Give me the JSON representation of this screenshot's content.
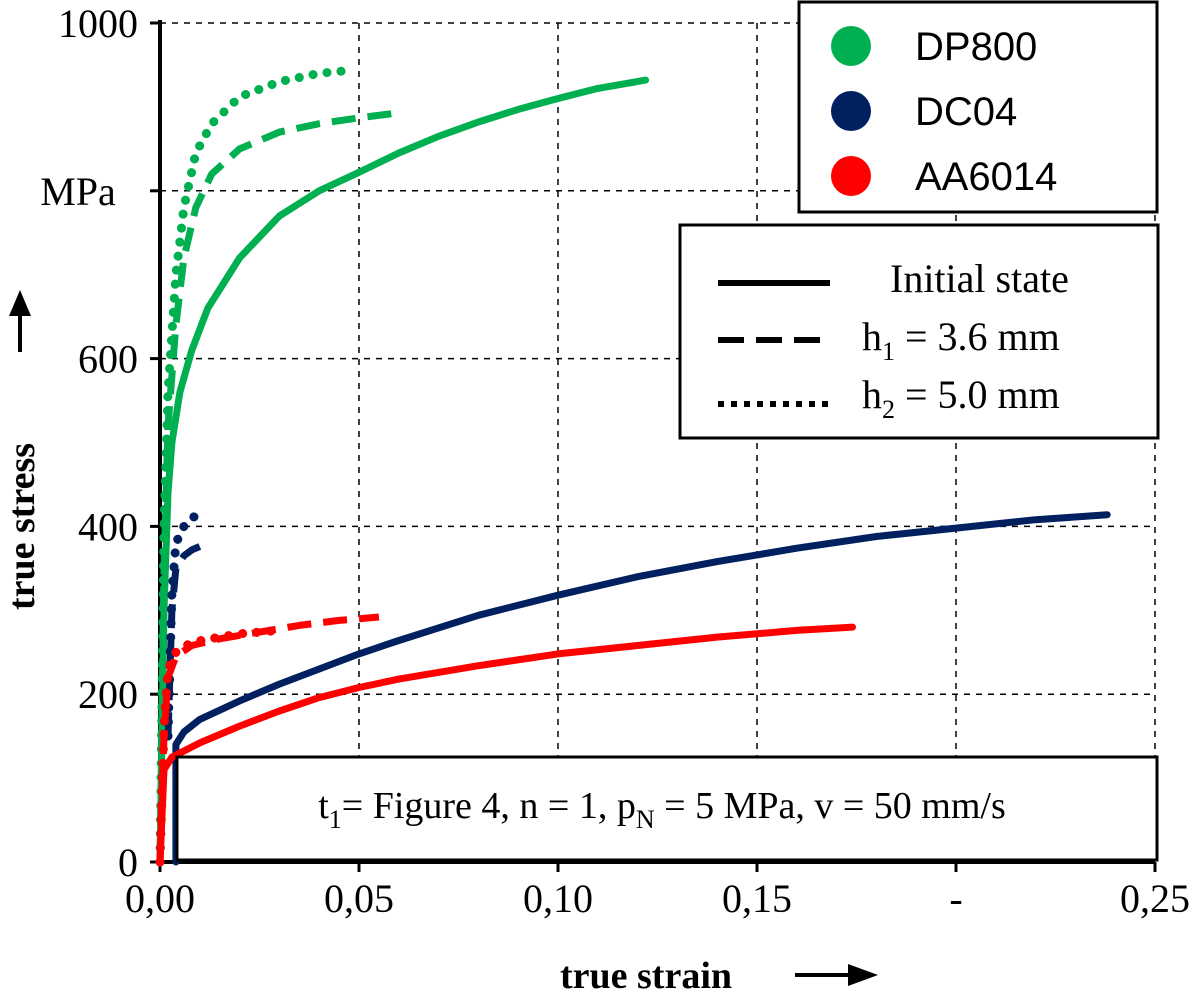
{
  "chart_data": {
    "type": "line",
    "xlabel": "true strain",
    "ylabel": "true stress",
    "y_unit": "MPa",
    "xlim": [
      0,
      0.25
    ],
    "ylim": [
      0,
      1000
    ],
    "x_ticks": [
      "0,00",
      "0,05",
      "0,10",
      "0,15",
      "-",
      "0,25"
    ],
    "y_ticks": [
      "0",
      "200",
      "400",
      "600",
      "1000"
    ],
    "grid": true,
    "legend_materials": [
      {
        "name": "DP800",
        "color": "#00b050"
      },
      {
        "name": "DC04",
        "color": "#002060"
      },
      {
        "name": "AA6014",
        "color": "#ff0000"
      }
    ],
    "legend_states": [
      {
        "label": "Initial state",
        "style": "solid"
      },
      {
        "label_main": "h",
        "label_sub": "1",
        "label_rest": " = 3.6 mm",
        "style": "dashed"
      },
      {
        "label_main": "h",
        "label_sub": "2",
        "label_rest": " = 5.0 mm",
        "style": "dotted"
      }
    ],
    "note": {
      "t": "t",
      "t_sub": "1",
      "mid": "= Figure 4, n = 1, p",
      "p_sub": "N",
      "rest": " = 5 MPa, v = 50 mm/s"
    },
    "series": [
      {
        "material": "DP800",
        "state": "solid",
        "color": "#00b050",
        "points": [
          [
            0,
            0
          ],
          [
            0.001,
            300
          ],
          [
            0.002,
            440
          ],
          [
            0.003,
            500
          ],
          [
            0.005,
            560
          ],
          [
            0.008,
            610
          ],
          [
            0.012,
            660
          ],
          [
            0.02,
            720
          ],
          [
            0.03,
            770
          ],
          [
            0.04,
            800
          ],
          [
            0.05,
            822
          ],
          [
            0.06,
            845
          ],
          [
            0.07,
            865
          ],
          [
            0.08,
            882
          ],
          [
            0.09,
            897
          ],
          [
            0.1,
            910
          ],
          [
            0.11,
            922
          ],
          [
            0.122,
            932
          ]
        ]
      },
      {
        "material": "DP800",
        "state": "dashed",
        "color": "#00b050",
        "points": [
          [
            0,
            0
          ],
          [
            0.001,
            350
          ],
          [
            0.002,
            520
          ],
          [
            0.004,
            640
          ],
          [
            0.006,
            720
          ],
          [
            0.009,
            780
          ],
          [
            0.013,
            820
          ],
          [
            0.02,
            850
          ],
          [
            0.03,
            870
          ],
          [
            0.04,
            880
          ],
          [
            0.05,
            887
          ],
          [
            0.06,
            893
          ]
        ]
      },
      {
        "material": "DP800",
        "state": "dotted",
        "color": "#00b050",
        "points": [
          [
            0,
            0
          ],
          [
            0.001,
            400
          ],
          [
            0.002,
            560
          ],
          [
            0.004,
            700
          ],
          [
            0.006,
            780
          ],
          [
            0.009,
            845
          ],
          [
            0.013,
            880
          ],
          [
            0.02,
            912
          ],
          [
            0.03,
            930
          ],
          [
            0.04,
            940
          ],
          [
            0.049,
            944
          ]
        ]
      },
      {
        "material": "DC04",
        "state": "solid",
        "color": "#002060",
        "points": [
          [
            0.004,
            0
          ],
          [
            0.004,
            140
          ],
          [
            0.006,
            155
          ],
          [
            0.01,
            170
          ],
          [
            0.02,
            192
          ],
          [
            0.03,
            212
          ],
          [
            0.04,
            230
          ],
          [
            0.05,
            248
          ],
          [
            0.06,
            264
          ],
          [
            0.08,
            294
          ],
          [
            0.1,
            318
          ],
          [
            0.12,
            340
          ],
          [
            0.14,
            358
          ],
          [
            0.16,
            374
          ],
          [
            0.18,
            388
          ],
          [
            0.2,
            398
          ],
          [
            0.22,
            408
          ],
          [
            0.238,
            414
          ]
        ]
      },
      {
        "material": "DC04",
        "state": "dashed",
        "color": "#002060",
        "points": [
          [
            0.002,
            150
          ],
          [
            0.003,
            300
          ],
          [
            0.004,
            350
          ],
          [
            0.006,
            365
          ],
          [
            0.008,
            372
          ],
          [
            0.01,
            376
          ]
        ]
      },
      {
        "material": "DC04",
        "state": "dotted",
        "color": "#002060",
        "points": [
          [
            0.002,
            150
          ],
          [
            0.003,
            320
          ],
          [
            0.004,
            380
          ],
          [
            0.006,
            400
          ],
          [
            0.008,
            410
          ],
          [
            0.01,
            415
          ]
        ]
      },
      {
        "material": "AA6014",
        "state": "solid",
        "color": "#ff0000",
        "points": [
          [
            0,
            0
          ],
          [
            0.001,
            110
          ],
          [
            0.003,
            125
          ],
          [
            0.01,
            142
          ],
          [
            0.02,
            162
          ],
          [
            0.03,
            180
          ],
          [
            0.04,
            196
          ],
          [
            0.05,
            208
          ],
          [
            0.06,
            218
          ],
          [
            0.08,
            234
          ],
          [
            0.1,
            248
          ],
          [
            0.12,
            258
          ],
          [
            0.14,
            268
          ],
          [
            0.16,
            276
          ],
          [
            0.174,
            280
          ]
        ]
      },
      {
        "material": "AA6014",
        "state": "dashed",
        "color": "#ff0000",
        "points": [
          [
            0,
            0
          ],
          [
            0.001,
            150
          ],
          [
            0.002,
            220
          ],
          [
            0.004,
            245
          ],
          [
            0.008,
            258
          ],
          [
            0.015,
            266
          ],
          [
            0.025,
            274
          ],
          [
            0.035,
            282
          ],
          [
            0.045,
            288
          ],
          [
            0.055,
            292
          ]
        ]
      },
      {
        "material": "AA6014",
        "state": "dotted",
        "color": "#ff0000",
        "points": [
          [
            0,
            0
          ],
          [
            0.001,
            160
          ],
          [
            0.002,
            230
          ],
          [
            0.004,
            250
          ],
          [
            0.008,
            262
          ],
          [
            0.015,
            268
          ],
          [
            0.02,
            272
          ],
          [
            0.03,
            276
          ]
        ]
      }
    ]
  }
}
